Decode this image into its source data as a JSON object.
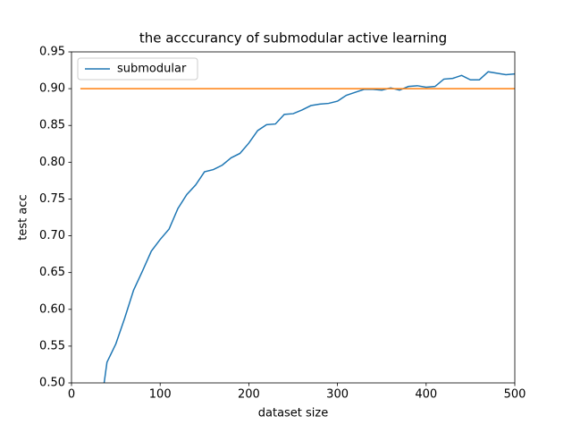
{
  "chart_data": {
    "type": "line",
    "title": "the acccurancy of submodular active learning",
    "xlabel": "dataset size",
    "ylabel": "test acc",
    "xlim": [
      0,
      500
    ],
    "xticks": [
      0,
      100,
      200,
      300,
      400,
      500
    ],
    "ylim": [
      0.5,
      0.95
    ],
    "yticks": [
      {
        "value": 0.5,
        "label": "0.50"
      },
      0.55,
      {
        "value": 0.6,
        "label": "0.60"
      },
      0.65,
      {
        "value": 0.7,
        "label": "0.70"
      },
      0.75,
      {
        "value": 0.8,
        "label": "0.80"
      },
      0.85,
      {
        "value": 0.9,
        "label": "0.90"
      },
      0.95
    ],
    "legend": "upper left",
    "series": [
      {
        "name": "submodular",
        "color": "#1f77b4",
        "x": [
          30,
          40,
          50,
          60,
          70,
          80,
          90,
          100,
          110,
          120,
          130,
          140,
          150,
          160,
          170,
          180,
          190,
          200,
          210,
          220,
          230,
          240,
          250,
          260,
          270,
          280,
          290,
          300,
          310,
          320,
          330,
          340,
          350,
          360,
          370,
          380,
          390,
          400,
          410,
          420,
          430,
          440,
          450,
          460,
          470,
          480,
          490,
          500
        ],
        "values": [
          0.44,
          0.528,
          0.553,
          0.588,
          0.626,
          0.652,
          0.679,
          0.695,
          0.709,
          0.737,
          0.756,
          0.769,
          0.787,
          0.79,
          0.796,
          0.806,
          0.812,
          0.826,
          0.843,
          0.851,
          0.852,
          0.865,
          0.866,
          0.871,
          0.877,
          0.879,
          0.88,
          0.883,
          0.891,
          0.895,
          0.899,
          0.899,
          0.898,
          0.901,
          0.898,
          0.903,
          0.904,
          0.902,
          0.903,
          0.913,
          0.914,
          0.918,
          0.912,
          0.912,
          0.923,
          0.921,
          0.919,
          0.92
        ]
      },
      {
        "color": "#ff7f0e",
        "x": [
          10,
          500
        ],
        "values": [
          0.9,
          0.9
        ]
      }
    ]
  }
}
